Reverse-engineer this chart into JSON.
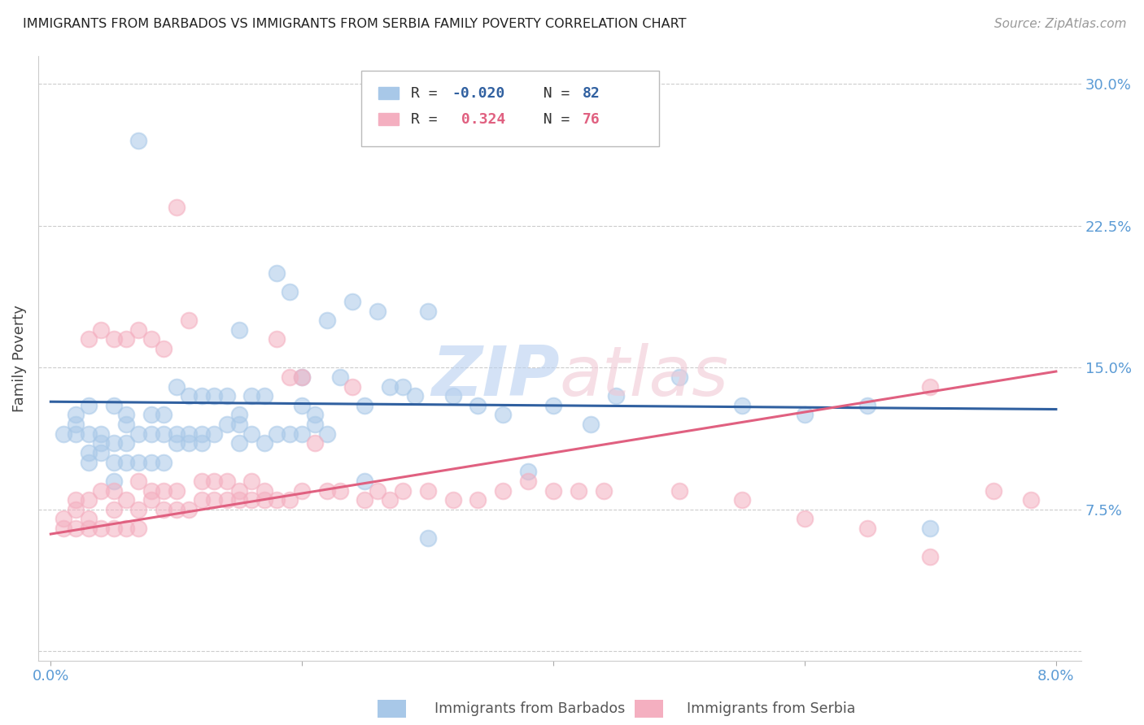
{
  "title": "IMMIGRANTS FROM BARBADOS VS IMMIGRANTS FROM SERBIA FAMILY POVERTY CORRELATION CHART",
  "source": "Source: ZipAtlas.com",
  "ylabel": "Family Poverty",
  "yticks": [
    0.0,
    0.075,
    0.15,
    0.225,
    0.3
  ],
  "ytick_labels": [
    "",
    "7.5%",
    "15.0%",
    "22.5%",
    "30.0%"
  ],
  "xticks": [
    0.0,
    0.02,
    0.04,
    0.06,
    0.08
  ],
  "xtick_labels": [
    "0.0%",
    "",
    "",
    "",
    "8.0%"
  ],
  "xlim": [
    -0.001,
    0.082
  ],
  "ylim": [
    -0.005,
    0.315
  ],
  "barbados_color": "#a8c8e8",
  "serbia_color": "#f4afc0",
  "barbados_line_color": "#3060a0",
  "serbia_line_color": "#e06080",
  "barbados_R": -0.02,
  "barbados_N": 82,
  "serbia_R": 0.324,
  "serbia_N": 76,
  "grid_color": "#cccccc",
  "axis_tick_color": "#5b9bd5",
  "barbados_x": [
    0.001,
    0.002,
    0.002,
    0.002,
    0.003,
    0.003,
    0.003,
    0.003,
    0.004,
    0.004,
    0.004,
    0.005,
    0.005,
    0.005,
    0.005,
    0.006,
    0.006,
    0.006,
    0.006,
    0.007,
    0.007,
    0.007,
    0.008,
    0.008,
    0.008,
    0.009,
    0.009,
    0.009,
    0.01,
    0.01,
    0.01,
    0.011,
    0.011,
    0.011,
    0.012,
    0.012,
    0.012,
    0.013,
    0.013,
    0.014,
    0.014,
    0.015,
    0.015,
    0.015,
    0.016,
    0.016,
    0.017,
    0.017,
    0.018,
    0.018,
    0.019,
    0.019,
    0.02,
    0.02,
    0.021,
    0.021,
    0.022,
    0.022,
    0.023,
    0.024,
    0.025,
    0.026,
    0.027,
    0.028,
    0.029,
    0.03,
    0.032,
    0.034,
    0.036,
    0.038,
    0.04,
    0.043,
    0.045,
    0.05,
    0.055,
    0.06,
    0.065,
    0.07,
    0.015,
    0.02,
    0.025,
    0.03
  ],
  "barbados_y": [
    0.115,
    0.115,
    0.12,
    0.125,
    0.1,
    0.105,
    0.115,
    0.13,
    0.105,
    0.11,
    0.115,
    0.09,
    0.1,
    0.11,
    0.13,
    0.1,
    0.11,
    0.12,
    0.125,
    0.1,
    0.115,
    0.27,
    0.1,
    0.115,
    0.125,
    0.1,
    0.115,
    0.125,
    0.11,
    0.115,
    0.14,
    0.11,
    0.115,
    0.135,
    0.11,
    0.115,
    0.135,
    0.115,
    0.135,
    0.12,
    0.135,
    0.11,
    0.12,
    0.17,
    0.115,
    0.135,
    0.11,
    0.135,
    0.115,
    0.2,
    0.115,
    0.19,
    0.115,
    0.145,
    0.12,
    0.125,
    0.115,
    0.175,
    0.145,
    0.185,
    0.13,
    0.18,
    0.14,
    0.14,
    0.135,
    0.18,
    0.135,
    0.13,
    0.125,
    0.095,
    0.13,
    0.12,
    0.135,
    0.145,
    0.13,
    0.125,
    0.13,
    0.065,
    0.125,
    0.13,
    0.09,
    0.06
  ],
  "serbia_x": [
    0.001,
    0.001,
    0.002,
    0.002,
    0.002,
    0.003,
    0.003,
    0.003,
    0.004,
    0.004,
    0.005,
    0.005,
    0.005,
    0.006,
    0.006,
    0.007,
    0.007,
    0.007,
    0.008,
    0.008,
    0.009,
    0.009,
    0.01,
    0.01,
    0.011,
    0.011,
    0.012,
    0.012,
    0.013,
    0.013,
    0.014,
    0.014,
    0.015,
    0.015,
    0.016,
    0.016,
    0.017,
    0.017,
    0.018,
    0.018,
    0.019,
    0.019,
    0.02,
    0.02,
    0.021,
    0.022,
    0.023,
    0.024,
    0.025,
    0.026,
    0.027,
    0.028,
    0.03,
    0.032,
    0.034,
    0.036,
    0.038,
    0.04,
    0.042,
    0.044,
    0.05,
    0.055,
    0.06,
    0.065,
    0.07,
    0.07,
    0.075,
    0.078,
    0.003,
    0.004,
    0.005,
    0.006,
    0.007,
    0.008,
    0.009,
    0.01
  ],
  "serbia_y": [
    0.065,
    0.07,
    0.065,
    0.075,
    0.08,
    0.065,
    0.07,
    0.08,
    0.065,
    0.085,
    0.065,
    0.075,
    0.085,
    0.065,
    0.08,
    0.065,
    0.075,
    0.09,
    0.08,
    0.085,
    0.075,
    0.085,
    0.075,
    0.085,
    0.075,
    0.175,
    0.08,
    0.09,
    0.08,
    0.09,
    0.08,
    0.09,
    0.08,
    0.085,
    0.08,
    0.09,
    0.08,
    0.085,
    0.08,
    0.165,
    0.08,
    0.145,
    0.085,
    0.145,
    0.11,
    0.085,
    0.085,
    0.14,
    0.08,
    0.085,
    0.08,
    0.085,
    0.085,
    0.08,
    0.08,
    0.085,
    0.09,
    0.085,
    0.085,
    0.085,
    0.085,
    0.08,
    0.07,
    0.065,
    0.05,
    0.14,
    0.085,
    0.08,
    0.165,
    0.17,
    0.165,
    0.165,
    0.17,
    0.165,
    0.16,
    0.235
  ],
  "barbados_line_y0": 0.132,
  "barbados_line_y1": 0.128,
  "serbia_line_y0": 0.062,
  "serbia_line_y1": 0.148
}
